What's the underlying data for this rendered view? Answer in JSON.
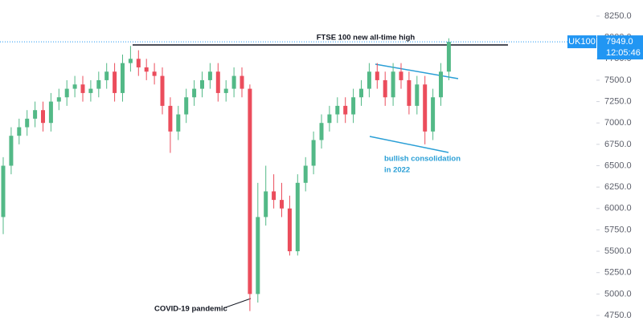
{
  "chart_data": {
    "type": "candlestick",
    "symbol": "UK100",
    "last_price": {
      "value": 7949,
      "label": "7949.0"
    },
    "time": "12:05:46",
    "annotations": [
      "FTSE 100 new all-time high",
      "bullish consolidation",
      "in 2022",
      "COVID-19 pandemic"
    ],
    "up_color": "#53b987",
    "down_color": "#eb4d5c",
    "open": [
      5900,
      6500,
      6850,
      6950,
      7050,
      7150,
      7000,
      7250,
      7300,
      7400,
      7450,
      7350,
      7400,
      7500,
      7600,
      7350,
      7700,
      7750,
      7650,
      7600,
      7550,
      7200,
      6900,
      7100,
      7300,
      7400,
      7500,
      7600,
      7350,
      7400,
      7550,
      7400,
      5000,
      5900,
      6200,
      6100,
      6000,
      5500,
      6300,
      6500,
      6800,
      7000,
      7100,
      7200,
      7100,
      7300,
      7400,
      7600,
      7500,
      7300,
      7600,
      7500,
      7200,
      7450,
      6900,
      7300,
      7600
    ],
    "high": [
      6600,
      6950,
      7050,
      7150,
      7250,
      7250,
      7350,
      7400,
      7500,
      7550,
      7550,
      7500,
      7600,
      7700,
      7700,
      7800,
      7900,
      7850,
      7750,
      7700,
      7650,
      7300,
      7200,
      7400,
      7500,
      7600,
      7700,
      7700,
      7500,
      7650,
      7650,
      7450,
      6300,
      6500,
      6400,
      6300,
      6150,
      6400,
      6600,
      6900,
      7100,
      7200,
      7300,
      7300,
      7400,
      7500,
      7700,
      7700,
      7600,
      7700,
      7700,
      7600,
      7550,
      7550,
      7400,
      7700,
      7990
    ],
    "low": [
      5700,
      6400,
      6750,
      6850,
      6950,
      6900,
      6900,
      7150,
      7200,
      7300,
      7250,
      7250,
      7300,
      7400,
      7250,
      7250,
      7600,
      7550,
      7500,
      7450,
      7100,
      6650,
      6800,
      7000,
      7200,
      7300,
      7400,
      7250,
      7250,
      7300,
      7300,
      4800,
      4900,
      5800,
      6000,
      5900,
      5450,
      5450,
      6200,
      6400,
      6700,
      6900,
      7000,
      7000,
      7000,
      7200,
      7300,
      7400,
      7200,
      7200,
      7400,
      7100,
      7100,
      6750,
      6800,
      7200,
      7500
    ],
    "close": [
      6500,
      6850,
      6950,
      7050,
      7150,
      7000,
      7250,
      7300,
      7400,
      7450,
      7350,
      7400,
      7500,
      7600,
      7350,
      7700,
      7750,
      7650,
      7600,
      7550,
      7200,
      6900,
      7100,
      7300,
      7400,
      7500,
      7600,
      7350,
      7400,
      7550,
      7400,
      5000,
      5900,
      6200,
      6100,
      6000,
      5500,
      6300,
      6500,
      6800,
      7000,
      7100,
      7200,
      7100,
      7300,
      7400,
      7600,
      7500,
      7300,
      7600,
      7500,
      7200,
      7450,
      6900,
      7300,
      7600,
      7949
    ],
    "ylim": [
      4750,
      8250
    ],
    "yticks": [
      {
        "value": 4750,
        "label": "4750.0"
      },
      {
        "value": 5000,
        "label": "5000.0"
      },
      {
        "value": 5250,
        "label": "5250.0"
      },
      {
        "value": 5500,
        "label": "5500.0"
      },
      {
        "value": 5750,
        "label": "5750.0"
      },
      {
        "value": 6000,
        "label": "6000.0"
      },
      {
        "value": 6250,
        "label": "6250.0"
      },
      {
        "value": 6500,
        "label": "6500.0"
      },
      {
        "value": 6750,
        "label": "6750.0"
      },
      {
        "value": 7000,
        "label": "7000.0"
      },
      {
        "value": 7250,
        "label": "7250.0"
      },
      {
        "value": 7500,
        "label": "7500.0"
      },
      {
        "value": 7750,
        "label": "7750.0"
      },
      {
        "value": 8000,
        "label": "8000.0"
      },
      {
        "value": 8250,
        "label": "8250.0"
      }
    ]
  }
}
